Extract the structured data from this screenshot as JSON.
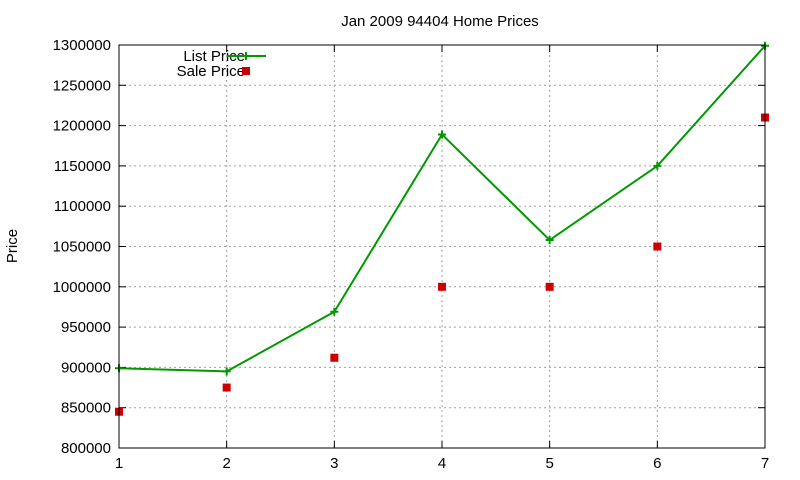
{
  "chart_data": {
    "type": "line",
    "title": "Jan 2009 94404 Home Prices",
    "xlabel": "",
    "ylabel": "Price",
    "x": [
      1,
      2,
      3,
      4,
      5,
      6,
      7
    ],
    "xlim": [
      1,
      7
    ],
    "ylim": [
      800000,
      1300000
    ],
    "x_ticks": [
      "1",
      "2",
      "3",
      "4",
      "5",
      "6",
      "7"
    ],
    "y_ticks": [
      "800000",
      "850000",
      "900000",
      "950000",
      "1000000",
      "1050000",
      "1100000",
      "1150000",
      "1200000",
      "1250000",
      "1300000"
    ],
    "grid": true,
    "legend_position": "top-left",
    "series": [
      {
        "name": "List Price",
        "style": "line-with-plus-markers",
        "color": "#009900",
        "values": [
          899000,
          895000,
          969000,
          1189000,
          1058000,
          1150000,
          1299000
        ]
      },
      {
        "name": "Sale Price",
        "style": "square-points",
        "color": "#cc0000",
        "values": [
          845000,
          875000,
          912000,
          1000000,
          1000000,
          1050000,
          1210000
        ]
      }
    ]
  }
}
